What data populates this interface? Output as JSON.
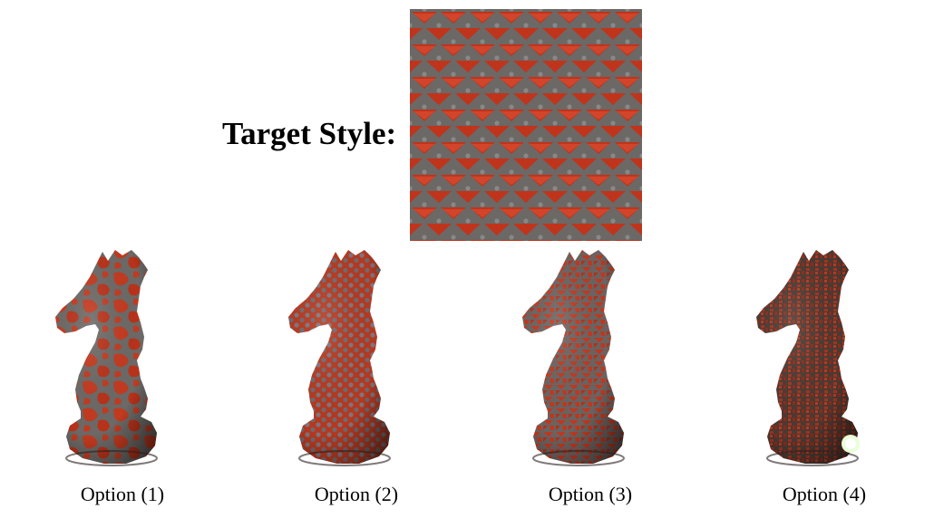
{
  "title": "Target Style:",
  "options": [
    {
      "label": "Option (1)"
    },
    {
      "label": "Option (2)"
    },
    {
      "label": "Option (3)"
    },
    {
      "label": "Option (4)"
    }
  ],
  "colors": {
    "texture_red": "#c1351c",
    "texture_gray": "#6a6562",
    "highlight": "#e8ffd8"
  }
}
